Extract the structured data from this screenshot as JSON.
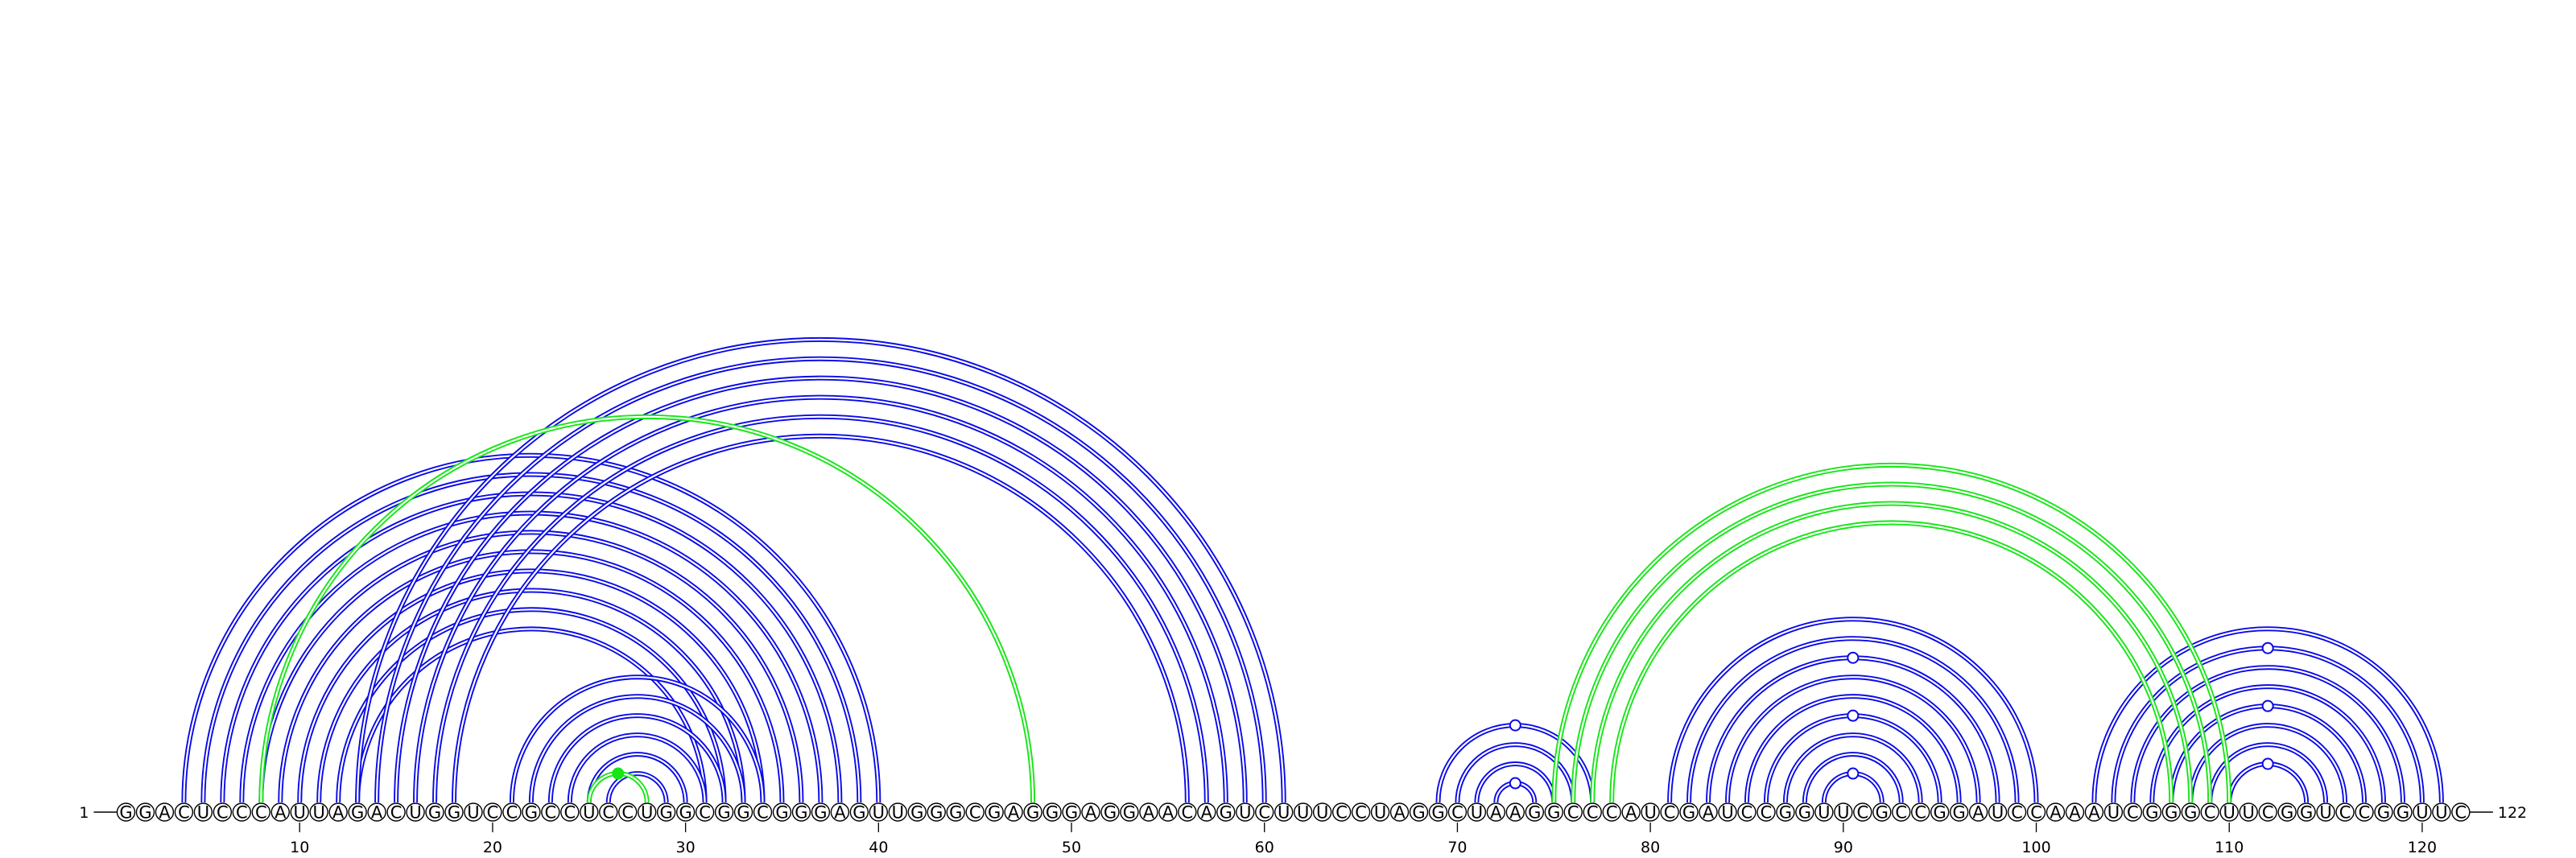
{
  "sequence": "GGACUCCCAUUAGACUGGUCCGCCUCCUGGCGGCGGGAGUUGGGCGAGGGAGGAACAGUCUUUCCUAGGCUAAGGCCCAUCGAUCCGGUUCGCCGGAUCCAAAUCGGGCUUCGGUCCGGUUC",
  "start_label": "1",
  "end_label": "122",
  "ticks": [
    10,
    20,
    30,
    40,
    50,
    60,
    70,
    80,
    90,
    100,
    110,
    120
  ],
  "colors": {
    "primary": "#0a0ae6",
    "alternative": "#15e615",
    "marker_fill": "#ffffff"
  },
  "pair_groups": [
    {
      "color": "primary",
      "pairs": [
        [
          4,
          40
        ],
        [
          5,
          39
        ],
        [
          6,
          38
        ],
        [
          7,
          37
        ],
        [
          8,
          36
        ],
        [
          9,
          35
        ],
        [
          10,
          34
        ],
        [
          11,
          33
        ],
        [
          12,
          32
        ],
        [
          13,
          31
        ]
      ],
      "marker_nt": null
    },
    {
      "color": "primary",
      "pairs": [
        [
          13,
          61
        ],
        [
          14,
          60
        ],
        [
          15,
          59
        ],
        [
          16,
          58
        ],
        [
          17,
          57
        ],
        [
          18,
          56
        ]
      ],
      "marker_nt": null
    },
    {
      "color": "primary",
      "pairs": [
        [
          21,
          34
        ],
        [
          22,
          33
        ],
        [
          23,
          32
        ],
        [
          24,
          31
        ],
        [
          25,
          30
        ],
        [
          26,
          29
        ]
      ],
      "marker_nt": null
    },
    {
      "color": "primary",
      "pairs": [
        [
          69,
          77
        ],
        [
          70,
          76
        ],
        [
          71,
          75
        ],
        [
          72,
          74
        ]
      ],
      "marker_nt": 73
    },
    {
      "color": "primary",
      "pairs": [
        [
          81,
          100
        ],
        [
          82,
          99
        ],
        [
          83,
          98
        ],
        [
          84,
          97
        ],
        [
          85,
          96
        ],
        [
          86,
          95
        ],
        [
          87,
          94
        ],
        [
          88,
          93
        ],
        [
          89,
          92
        ]
      ],
      "marker_nt": 90.5
    },
    {
      "color": "primary",
      "pairs": [
        [
          103,
          121
        ],
        [
          104,
          120
        ],
        [
          105,
          119
        ],
        [
          106,
          118
        ],
        [
          107,
          117
        ],
        [
          108,
          116
        ],
        [
          109,
          115
        ],
        [
          110,
          114
        ]
      ],
      "marker_nt": 112
    },
    {
      "color": "alternative",
      "pairs": [
        [
          8,
          48
        ]
      ],
      "marker_nt": null
    },
    {
      "color": "alternative",
      "pairs": [
        [
          25,
          28
        ]
      ],
      "marker_nt": 26.5
    },
    {
      "color": "alternative",
      "pairs": [
        [
          75,
          110
        ],
        [
          76,
          109
        ],
        [
          77,
          108
        ],
        [
          78,
          107
        ]
      ],
      "marker_nt": null
    }
  ]
}
